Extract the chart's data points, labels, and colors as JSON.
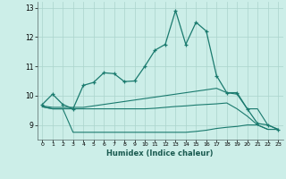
{
  "xlabel": "Humidex (Indice chaleur)",
  "background_color": "#cceee8",
  "grid_color": "#aad4cc",
  "line_color": "#1a7a6e",
  "xlim": [
    -0.5,
    23.5
  ],
  "ylim": [
    8.5,
    13.2
  ],
  "yticks": [
    9,
    10,
    11,
    12,
    13
  ],
  "xticks": [
    0,
    1,
    2,
    3,
    4,
    5,
    6,
    7,
    8,
    9,
    10,
    11,
    12,
    13,
    14,
    15,
    16,
    17,
    18,
    19,
    20,
    21,
    22,
    23
  ],
  "line_main": {
    "x": [
      0,
      1,
      2,
      3,
      4,
      5,
      6,
      7,
      8,
      9,
      10,
      11,
      12,
      13,
      14,
      15,
      16,
      17,
      18,
      19,
      20,
      21,
      22,
      23
    ],
    "y": [
      9.7,
      10.05,
      9.7,
      9.55,
      10.35,
      10.45,
      10.78,
      10.75,
      10.48,
      10.5,
      11.0,
      11.55,
      11.75,
      12.9,
      11.75,
      12.5,
      12.2,
      10.68,
      10.1,
      10.1,
      9.55,
      9.05,
      9.0,
      8.85
    ]
  },
  "line_upper": {
    "x": [
      0,
      1,
      2,
      3,
      4,
      5,
      6,
      7,
      8,
      9,
      10,
      11,
      12,
      13,
      14,
      15,
      16,
      17,
      18,
      19,
      20,
      21,
      22,
      23
    ],
    "y": [
      9.65,
      9.6,
      9.6,
      9.6,
      9.6,
      9.65,
      9.7,
      9.75,
      9.8,
      9.85,
      9.9,
      9.95,
      10.0,
      10.05,
      10.1,
      10.15,
      10.2,
      10.25,
      10.1,
      10.05,
      9.55,
      9.55,
      9.0,
      8.85
    ]
  },
  "line_lower_top": {
    "x": [
      0,
      1,
      2,
      3,
      4,
      5,
      6,
      7,
      8,
      9,
      10,
      11,
      12,
      13,
      14,
      15,
      16,
      17,
      18,
      19,
      20,
      21,
      22,
      23
    ],
    "y": [
      9.62,
      9.55,
      9.55,
      9.55,
      9.55,
      9.55,
      9.55,
      9.55,
      9.55,
      9.55,
      9.55,
      9.57,
      9.6,
      9.63,
      9.65,
      9.68,
      9.7,
      9.72,
      9.75,
      9.55,
      9.3,
      9.0,
      8.85,
      8.85
    ]
  },
  "line_lower_bottom": {
    "x": [
      0,
      1,
      2,
      3,
      4,
      5,
      6,
      7,
      8,
      9,
      10,
      11,
      12,
      13,
      14,
      15,
      16,
      17,
      18,
      19,
      20,
      21,
      22,
      23
    ],
    "y": [
      9.62,
      9.55,
      9.55,
      8.75,
      8.75,
      8.75,
      8.75,
      8.75,
      8.75,
      8.75,
      8.75,
      8.75,
      8.75,
      8.75,
      8.75,
      8.78,
      8.82,
      8.88,
      8.92,
      8.95,
      9.0,
      9.0,
      8.85,
      8.85
    ]
  }
}
